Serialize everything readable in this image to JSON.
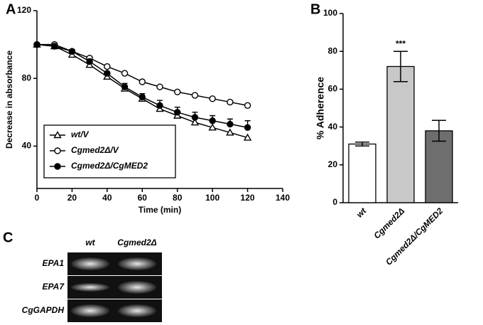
{
  "chart_data": [
    {
      "type": "line",
      "panel_label": "A",
      "x_label": "Time (min)",
      "y_label": "Decrease in absorbance",
      "x": [
        0,
        10,
        20,
        30,
        40,
        50,
        60,
        70,
        80,
        90,
        100,
        110,
        120
      ],
      "series": [
        {
          "name": "wt/V",
          "color": "#000000",
          "marker": "open-triangle",
          "values": [
            100,
            99,
            94,
            88,
            81,
            74,
            68,
            62,
            58,
            54,
            51,
            48,
            45
          ]
        },
        {
          "name": "Cgmed2Δ/V",
          "color": "#000000",
          "marker": "open-circle",
          "values": [
            100,
            100,
            96,
            92,
            87,
            83,
            78,
            75,
            72,
            70,
            68,
            66,
            64
          ]
        },
        {
          "name": "Cgmed2Δ/CgMED2",
          "color": "#000000",
          "marker": "filled-circle",
          "values": [
            100,
            99,
            96,
            90,
            83,
            75,
            69,
            64,
            60,
            57,
            55,
            53,
            51
          ],
          "errors": [
            0,
            0,
            1,
            1,
            1,
            2,
            2,
            3,
            3,
            3,
            3,
            3,
            4
          ]
        }
      ],
      "xlim": [
        0,
        140
      ],
      "xticks": [
        0,
        20,
        40,
        60,
        80,
        100,
        120,
        140
      ],
      "ylim": [
        15,
        120
      ],
      "yticks": [
        40,
        80,
        120
      ],
      "legend": "lower-left"
    },
    {
      "type": "bar",
      "panel_label": "B",
      "y_label": "% Adherence",
      "categories": [
        "wt",
        "Cgmed2Δ",
        "Cgmed2Δ/CgMED2"
      ],
      "values": [
        31,
        72,
        38
      ],
      "errors": [
        1,
        8,
        5.5
      ],
      "colors": [
        "#ffffff",
        "#c8c8c8",
        "#6e6e6e"
      ],
      "annotations": [
        null,
        "***",
        null
      ],
      "ylim": [
        0,
        100
      ],
      "yticks": [
        0,
        20,
        40,
        60,
        80,
        100
      ]
    }
  ],
  "gel": {
    "panel_label": "C",
    "columns": [
      "wt",
      "Cgmed2Δ"
    ],
    "rows": [
      "EPA1",
      "EPA7",
      "CgGAPDH"
    ]
  }
}
